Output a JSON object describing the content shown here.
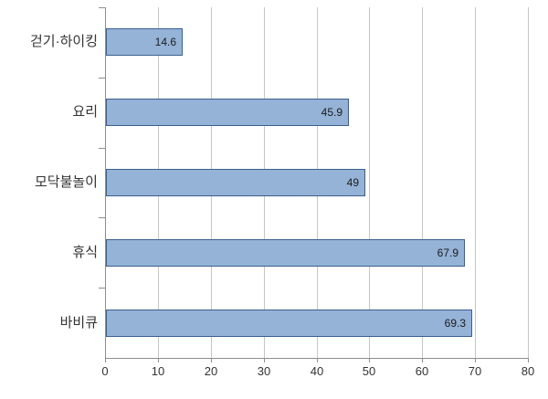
{
  "chart_data": {
    "type": "bar",
    "orientation": "horizontal",
    "title": "",
    "xlabel": "",
    "ylabel": "",
    "categories": [
      "걷기·하이킹",
      "요리",
      "모닥불놀이",
      "휴식",
      "바비큐"
    ],
    "values": [
      14.6,
      45.9,
      49,
      67.9,
      69.3
    ],
    "value_labels": [
      "14.6",
      "45.9",
      "49",
      "67.9",
      "69.3"
    ],
    "xlim": [
      0,
      80
    ],
    "xticks": [
      "0",
      "10",
      "20",
      "30",
      "40",
      "50",
      "60",
      "70",
      "80"
    ],
    "grid": "vertical-gridlines-on",
    "legend": "none",
    "colors": {
      "bar_fill": "#95B3D7",
      "bar_border": "#3A5F8B",
      "gridline": "#C6C6C6",
      "axis": "#8E8E8E",
      "label_text": "#333333",
      "value_text": "#1a1a1a",
      "background": "#FFFFFF"
    }
  }
}
